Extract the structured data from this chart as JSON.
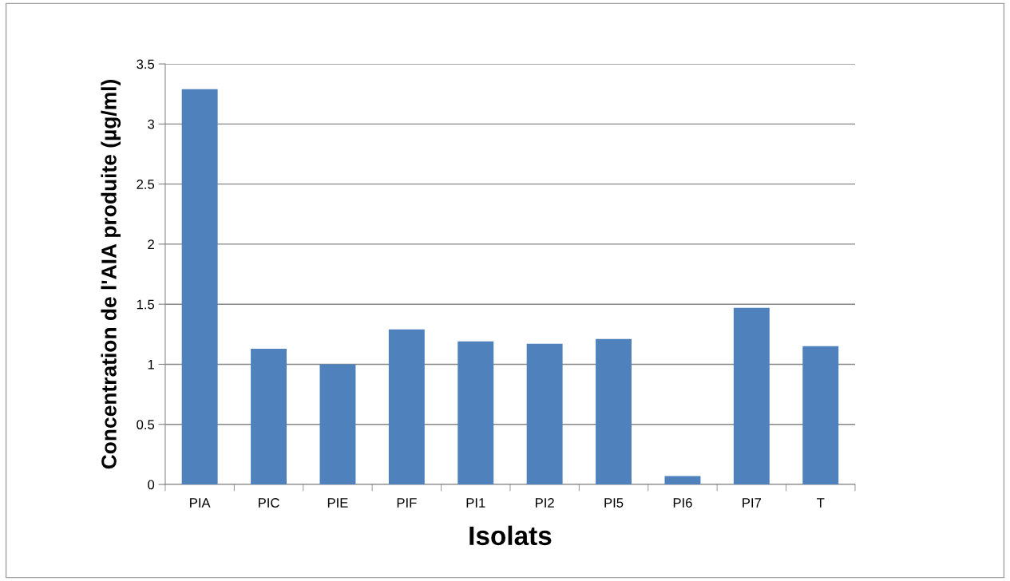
{
  "chart_data": {
    "type": "bar",
    "xlabel": "Isolats",
    "ylabel": "Concentration de l'AIA produite (µg/ml)",
    "categories": [
      "PIA",
      "PIC",
      "PIE",
      "PIF",
      "PI1",
      "PI2",
      "PI5",
      "PI6",
      "PI7",
      "T"
    ],
    "values": [
      3.29,
      1.13,
      1.0,
      1.29,
      1.19,
      1.17,
      1.21,
      0.07,
      1.47,
      1.15
    ],
    "color": "#4f81bd",
    "ylim": [
      0,
      3.5
    ],
    "yticks": [
      0,
      {
        "value": 0.5,
        "label": "0.5"
      },
      1,
      {
        "value": 1.5,
        "label": "1.5"
      },
      2,
      {
        "value": 2.5,
        "label": "2.5"
      },
      3,
      {
        "value": 3.5,
        "label": "3.5"
      }
    ],
    "grid": "y",
    "legend": false
  }
}
